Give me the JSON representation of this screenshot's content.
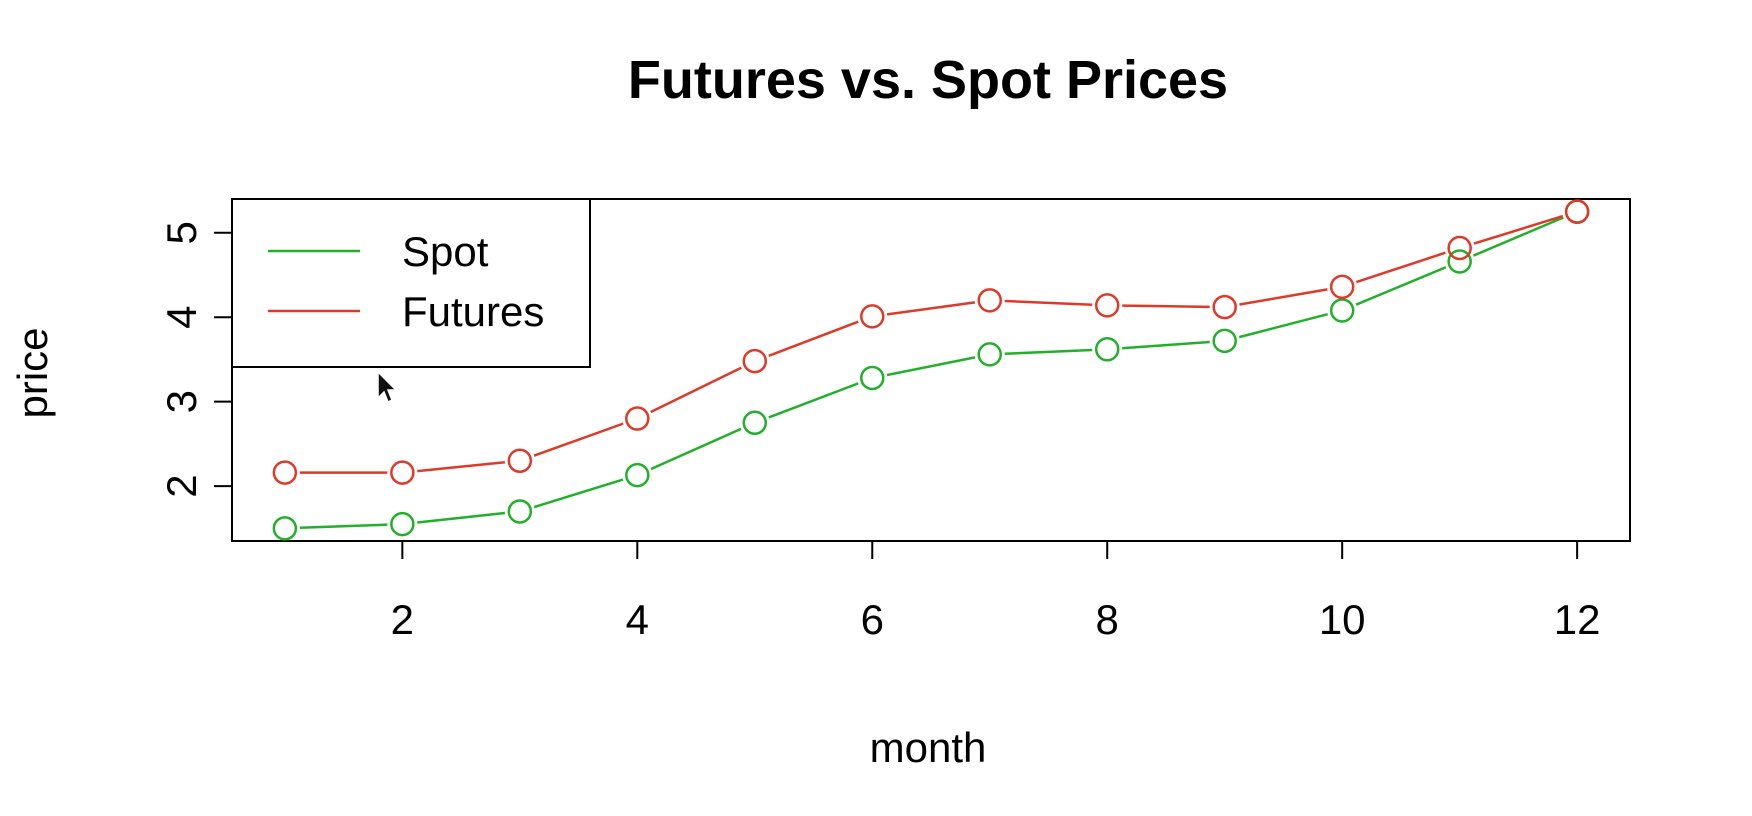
{
  "chart_data": {
    "type": "line",
    "title": "Futures vs. Spot Prices",
    "xlabel": "month",
    "ylabel": "price",
    "x": [
      1,
      2,
      3,
      4,
      5,
      6,
      7,
      8,
      9,
      10,
      11,
      12
    ],
    "xlim": [
      0.55,
      12.45
    ],
    "ylim": [
      1.35,
      5.4
    ],
    "xticks": [
      2,
      4,
      6,
      8,
      10,
      12
    ],
    "xtick_labels": [
      "2",
      "4",
      "6",
      "8",
      "10",
      "12"
    ],
    "yticks": [
      2,
      3,
      4,
      5
    ],
    "ytick_labels": [
      "2",
      "3",
      "4",
      "5"
    ],
    "grid": false,
    "legend": {
      "placement": "top-left",
      "entries": [
        "Spot",
        "Futures"
      ]
    },
    "series": [
      {
        "name": "Spot",
        "color": "#22b02a",
        "marker": "open-circle",
        "values": [
          1.5,
          1.55,
          1.7,
          2.13,
          2.75,
          3.28,
          3.56,
          3.62,
          3.72,
          4.08,
          4.66,
          5.25
        ]
      },
      {
        "name": "Futures",
        "color": "#dd3a2a",
        "marker": "open-circle",
        "values": [
          2.16,
          2.16,
          2.3,
          2.8,
          3.48,
          4.01,
          4.2,
          4.14,
          4.12,
          4.36,
          4.82,
          5.25
        ]
      }
    ]
  },
  "cursor": {
    "icon": "arrow-cursor-icon"
  }
}
